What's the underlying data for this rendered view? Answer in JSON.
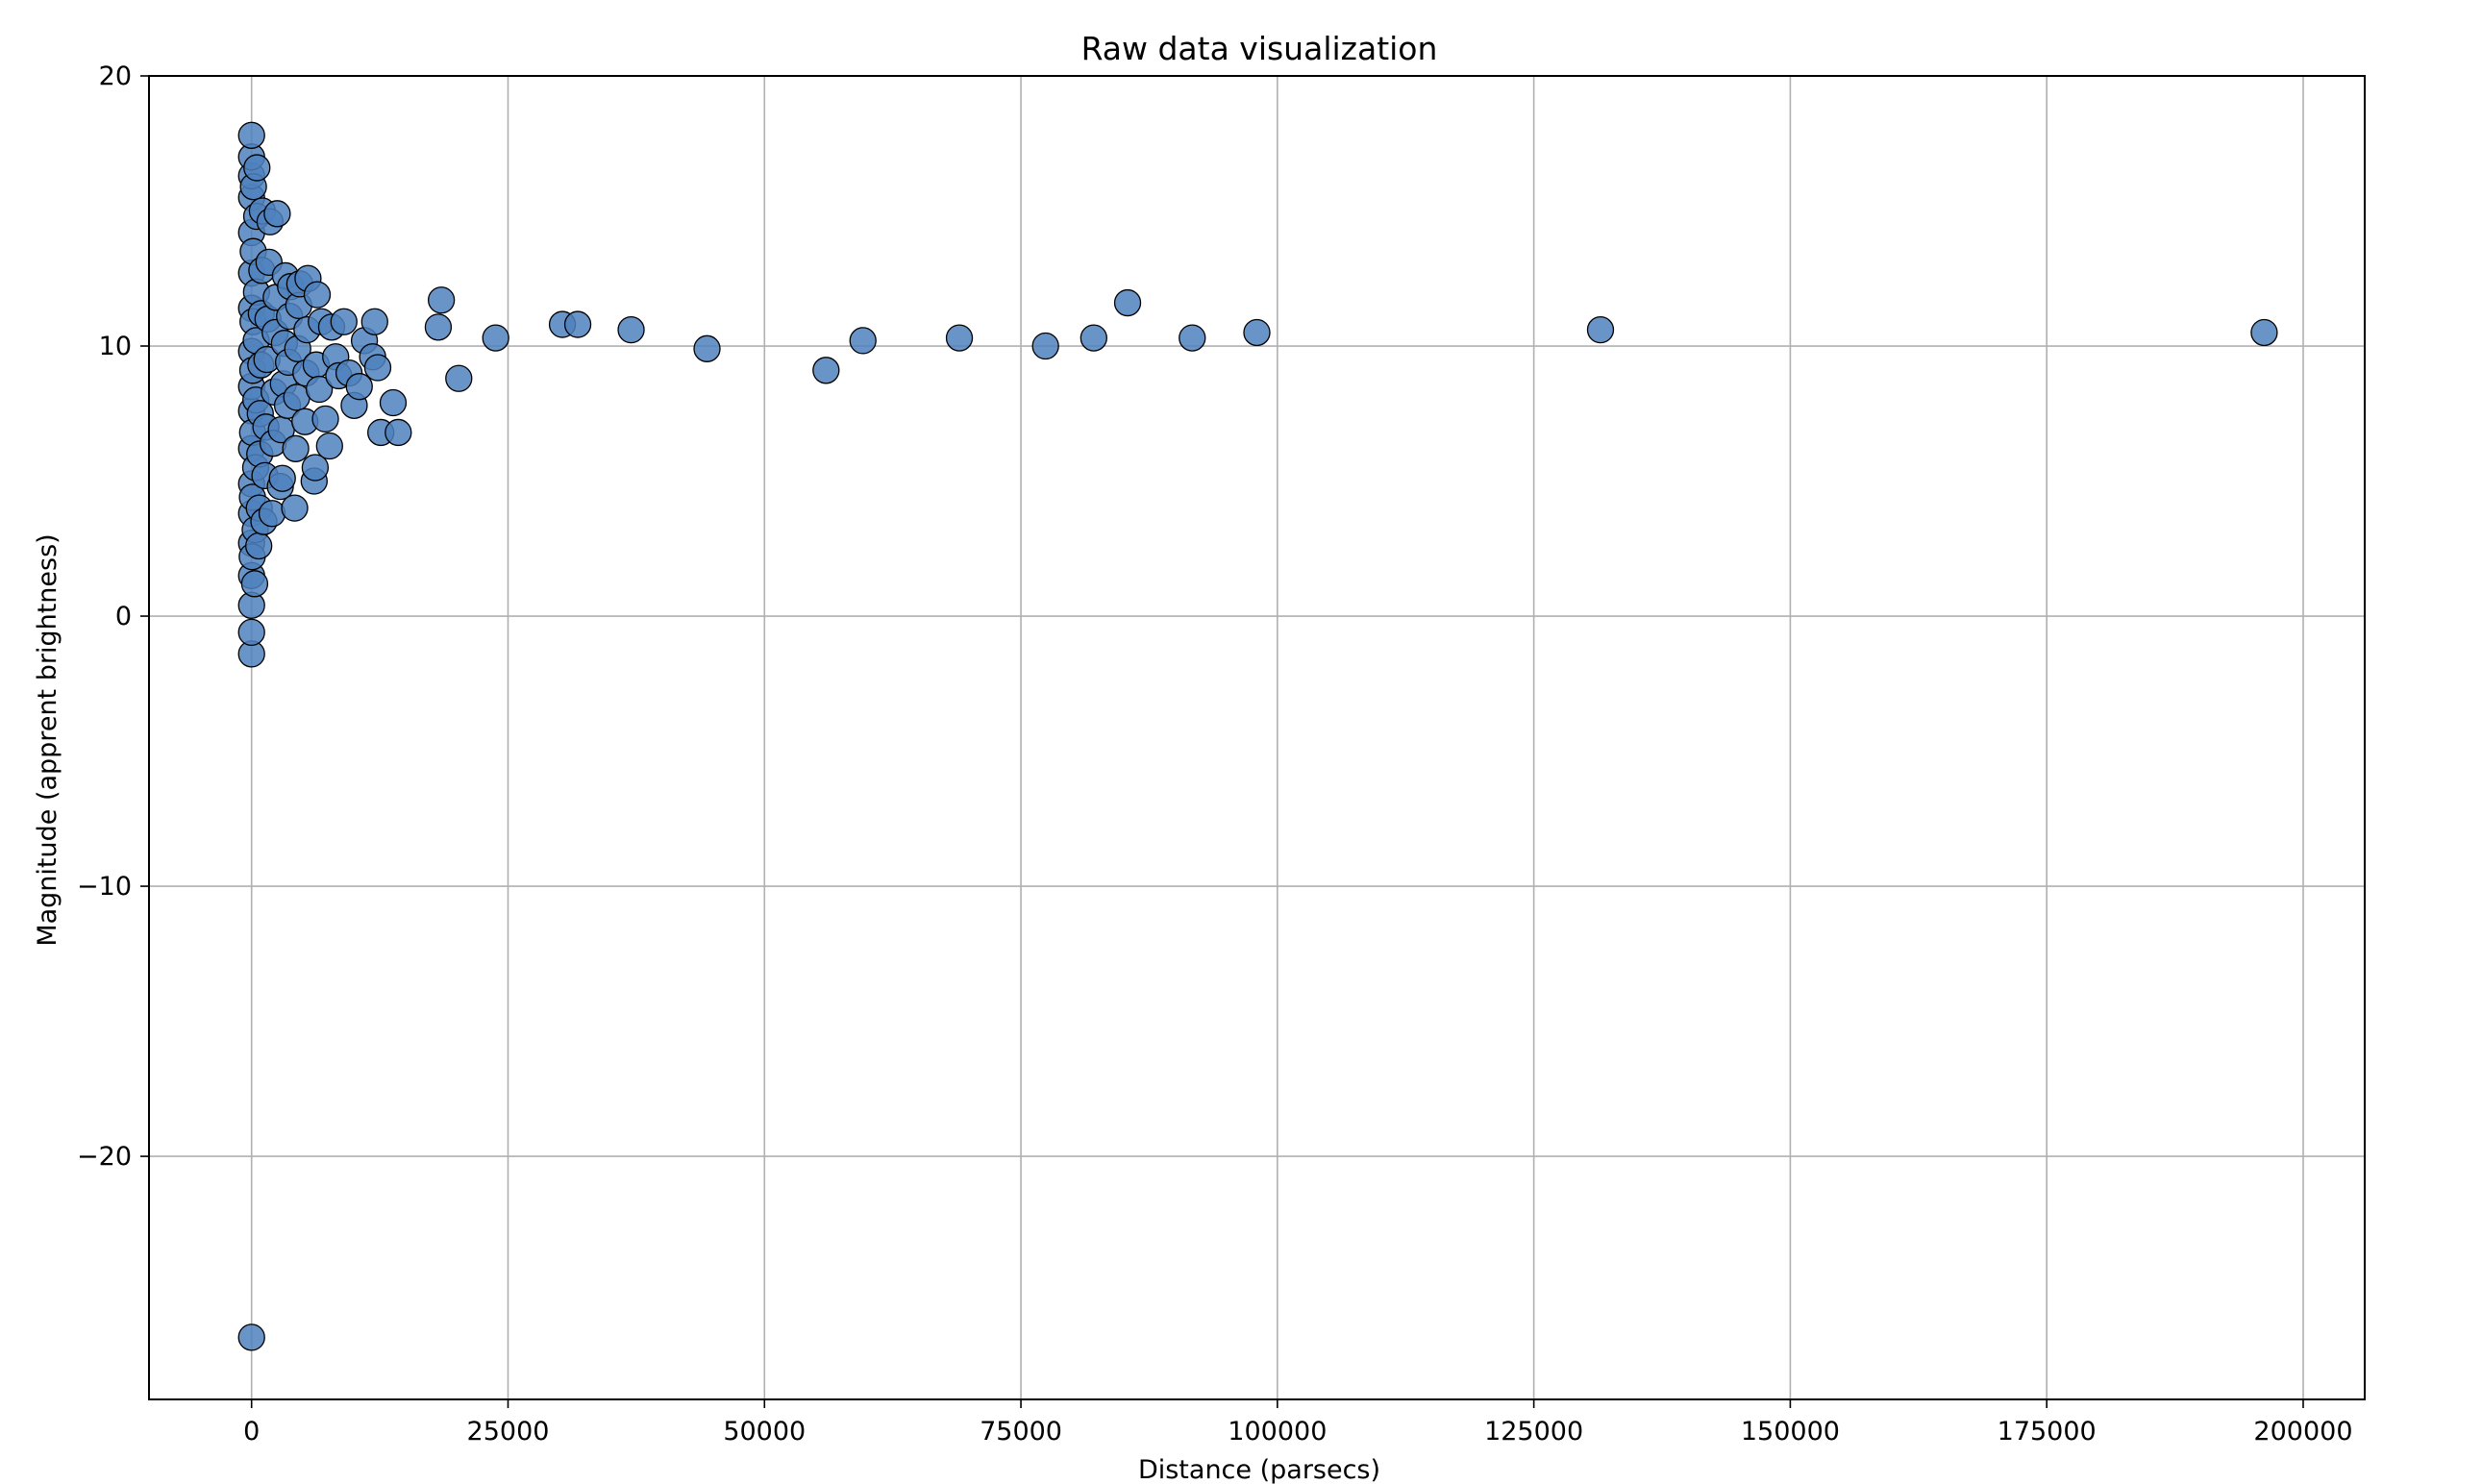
{
  "colors": {
    "marker_fill": "#4f81bd",
    "marker_edge": "#000000",
    "grid": "#b0b0b0",
    "background": "#ffffff"
  },
  "chart_data": {
    "type": "scatter",
    "title": "Raw data visualization",
    "xlabel": "Distance (parsecs)",
    "ylabel": "Magnitude (apprent brightness)",
    "xlim": [
      -10000,
      206000
    ],
    "ylim": [
      -29,
      20
    ],
    "xticks": [
      0,
      25000,
      50000,
      75000,
      100000,
      125000,
      150000,
      175000,
      200000
    ],
    "xtick_labels": [
      "0",
      "25000",
      "50000",
      "75000",
      "100000",
      "125000",
      "150000",
      "175000",
      "200000"
    ],
    "yticks": [
      -20,
      -10,
      0,
      10,
      20
    ],
    "ytick_labels": [
      "−20",
      "−10",
      "0",
      "10",
      "20"
    ],
    "grid": true,
    "legend": "none",
    "marker": "circle",
    "series": [
      {
        "points": [
          [
            0,
            -26.7
          ],
          [
            0,
            -1.4
          ],
          [
            0,
            -0.6
          ],
          [
            0,
            0.4
          ],
          [
            0,
            1.5
          ],
          [
            0,
            2.7
          ],
          [
            0,
            3.8
          ],
          [
            0,
            4.9
          ],
          [
            0,
            6.2
          ],
          [
            0,
            7.6
          ],
          [
            0,
            8.5
          ],
          [
            0,
            9.8
          ],
          [
            0,
            11.4
          ],
          [
            0,
            12.7
          ],
          [
            0,
            14.2
          ],
          [
            0,
            15.5
          ],
          [
            0,
            16.3
          ],
          [
            0,
            17.0
          ],
          [
            0,
            17.8
          ],
          [
            60,
            2.2
          ],
          [
            80,
            4.4
          ],
          [
            100,
            6.8
          ],
          [
            120,
            9.1
          ],
          [
            140,
            10.9
          ],
          [
            160,
            13.5
          ],
          [
            180,
            15.9
          ],
          [
            300,
            1.2
          ],
          [
            350,
            3.2
          ],
          [
            400,
            5.5
          ],
          [
            420,
            8.0
          ],
          [
            450,
            10.2
          ],
          [
            480,
            12.0
          ],
          [
            500,
            14.8
          ],
          [
            520,
            16.6
          ],
          [
            700,
            2.6
          ],
          [
            750,
            4.0
          ],
          [
            800,
            6.0
          ],
          [
            850,
            7.5
          ],
          [
            900,
            9.3
          ],
          [
            950,
            11.2
          ],
          [
            1000,
            12.8
          ],
          [
            1050,
            15.0
          ],
          [
            1200,
            3.5
          ],
          [
            1300,
            5.2
          ],
          [
            1400,
            7.0
          ],
          [
            1500,
            9.5
          ],
          [
            1600,
            11.0
          ],
          [
            1700,
            13.1
          ],
          [
            1800,
            14.6
          ],
          [
            2000,
            3.8
          ],
          [
            2100,
            6.4
          ],
          [
            2200,
            8.3
          ],
          [
            2300,
            10.5
          ],
          [
            2400,
            11.8
          ],
          [
            2500,
            14.9
          ],
          [
            2800,
            4.8
          ],
          [
            2900,
            6.9
          ],
          [
            3000,
            5.1
          ],
          [
            3100,
            8.6
          ],
          [
            3200,
            10.1
          ],
          [
            3300,
            12.6
          ],
          [
            3500,
            7.8
          ],
          [
            3600,
            9.4
          ],
          [
            3700,
            11.1
          ],
          [
            3800,
            12.2
          ],
          [
            4200,
            4.0
          ],
          [
            4300,
            6.2
          ],
          [
            4400,
            8.1
          ],
          [
            4500,
            9.9
          ],
          [
            4600,
            11.5
          ],
          [
            4700,
            12.3
          ],
          [
            5200,
            7.2
          ],
          [
            5300,
            9.0
          ],
          [
            5400,
            10.6
          ],
          [
            5500,
            12.5
          ],
          [
            6100,
            5.0
          ],
          [
            6200,
            5.5
          ],
          [
            6300,
            9.3
          ],
          [
            6400,
            11.9
          ],
          [
            6600,
            8.4
          ],
          [
            6800,
            10.9
          ],
          [
            7200,
            7.3
          ],
          [
            7600,
            6.3
          ],
          [
            7800,
            10.7
          ],
          [
            8200,
            9.6
          ],
          [
            8500,
            8.9
          ],
          [
            9000,
            10.9
          ],
          [
            9500,
            9.0
          ],
          [
            10000,
            7.8
          ],
          [
            10500,
            8.5
          ],
          [
            11000,
            10.2
          ],
          [
            11800,
            9.6
          ],
          [
            12000,
            10.9
          ],
          [
            12300,
            9.2
          ],
          [
            12600,
            6.8
          ],
          [
            13800,
            7.9
          ],
          [
            14300,
            6.8
          ],
          [
            18200,
            10.7
          ],
          [
            18500,
            11.7
          ],
          [
            20200,
            8.8
          ],
          [
            23800,
            10.3
          ],
          [
            30300,
            10.8
          ],
          [
            31800,
            10.8
          ],
          [
            37000,
            10.6
          ],
          [
            44400,
            9.9
          ],
          [
            56000,
            9.1
          ],
          [
            59600,
            10.2
          ],
          [
            69000,
            10.3
          ],
          [
            77400,
            10.0
          ],
          [
            82100,
            10.3
          ],
          [
            85400,
            11.6
          ],
          [
            91700,
            10.3
          ],
          [
            98000,
            10.5
          ],
          [
            131500,
            10.6
          ],
          [
            196200,
            10.5
          ]
        ]
      }
    ]
  }
}
